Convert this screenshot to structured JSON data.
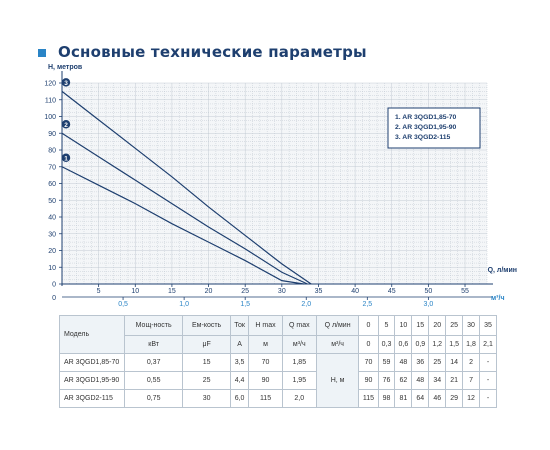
{
  "page": {
    "title": "Основные технические параметры",
    "accent_color": "#2a84c6",
    "title_color": "#1e3f6f"
  },
  "chart_data": {
    "type": "line",
    "y_axis_label": "Н, метров",
    "x_axis_label": "Q, л/мин",
    "x2_axis_label": "м³/ч",
    "ylim": [
      0,
      120
    ],
    "xlim": [
      0,
      58
    ],
    "x_ticks": [
      "5",
      "10",
      "15",
      "20",
      "25",
      "30",
      "35",
      "40",
      "45",
      "50",
      "55"
    ],
    "y_ticks": [
      "0",
      "10",
      "20",
      "30",
      "40",
      "50",
      "60",
      "70",
      "80",
      "90",
      "100",
      "110",
      "120"
    ],
    "x2_ticks": [
      "0,5",
      "1,0",
      "1,5",
      "2,0",
      "2,5",
      "3,0"
    ],
    "grid": true,
    "legend_position": "top-right",
    "legend": [
      "1.  AR 3QGD1,85-70",
      "2.  AR 3QGD1,95-90",
      "3.  AR 3QGD2-115"
    ],
    "line_color": "#1e3f6f",
    "series": [
      {
        "marker": "1",
        "x": [
          0,
          5,
          10,
          15,
          20,
          25,
          30,
          33
        ],
        "y": [
          70,
          59,
          48,
          36,
          25,
          14,
          2,
          0
        ]
      },
      {
        "marker": "2",
        "x": [
          0,
          5,
          10,
          15,
          20,
          25,
          30,
          33.5
        ],
        "y": [
          90,
          76,
          62,
          48,
          34,
          21,
          7,
          0
        ]
      },
      {
        "marker": "3",
        "x": [
          0,
          5,
          10,
          15,
          20,
          25,
          30,
          34
        ],
        "y": [
          115,
          98,
          81,
          64,
          46,
          29,
          12,
          0
        ]
      }
    ]
  },
  "table": {
    "h_model": "Модель",
    "h_power": "Мощ-ность",
    "h_cap": "Ем-кость",
    "h_current": "Ток",
    "h_hmax": "H max",
    "h_qmax": "Q max",
    "h_q": "Q л/мин",
    "q_values": [
      "0",
      "5",
      "10",
      "15",
      "20",
      "25",
      "30",
      "35"
    ],
    "u_power": "кВт",
    "u_cap": "μF",
    "u_current": "A",
    "u_hmax": "м",
    "u_qmax": "м³/ч",
    "u_q": "м³/ч",
    "m3_values": [
      "0",
      "0,3",
      "0,6",
      "0,9",
      "1,2",
      "1,5",
      "1,8",
      "2,1"
    ],
    "h_label": "Н, м",
    "rows": [
      {
        "model": "AR 3QGD1,85-70",
        "power": "0,37",
        "cap": "15",
        "current": "3,5",
        "hmax": "70",
        "qmax": "1,85",
        "heads": [
          "70",
          "59",
          "48",
          "36",
          "25",
          "14",
          "2",
          "-"
        ]
      },
      {
        "model": "AR 3QGD1,95-90",
        "power": "0,55",
        "cap": "25",
        "current": "4,4",
        "hmax": "90",
        "qmax": "1,95",
        "heads": [
          "90",
          "76",
          "62",
          "48",
          "34",
          "21",
          "7",
          "-"
        ]
      },
      {
        "model": "AR 3QGD2-115",
        "power": "0,75",
        "cap": "30",
        "current": "6,0",
        "hmax": "115",
        "qmax": "2,0",
        "heads": [
          "115",
          "98",
          "81",
          "64",
          "46",
          "29",
          "12",
          "-"
        ]
      }
    ]
  }
}
